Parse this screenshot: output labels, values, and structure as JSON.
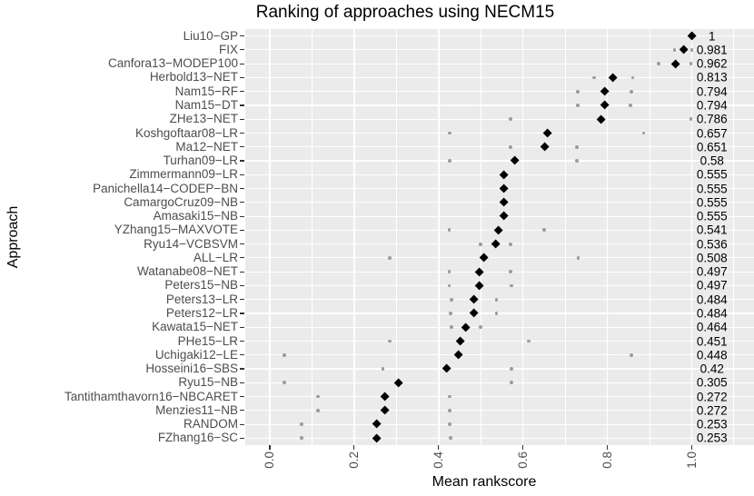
{
  "chart_data": {
    "type": "scatter",
    "title": "Ranking of approaches using NECM15",
    "xlabel": "Mean rankscore",
    "ylabel": "Approach",
    "legend": false,
    "grid": true,
    "panel_background": "#EBEBEB",
    "gridline_color": "#ffffff",
    "mean_marker_color": "#000000",
    "secondary_marker_color": "#9B9B9B",
    "axis_text_color": "#4D4D4D",
    "xlim": [
      -0.058,
      1.147
    ],
    "x_major_ticks": [
      0.0,
      0.2,
      0.4,
      0.6,
      0.8,
      1.0
    ],
    "x_tick_labels": [
      "0.0",
      "0.2",
      "0.4",
      "0.6",
      "0.8",
      "1.0"
    ],
    "x_minor_gridlines": [
      0.1,
      0.3,
      0.5,
      0.7,
      0.9,
      1.1
    ],
    "value_label_x": 1.048,
    "series": [
      {
        "name": "mean rankscore",
        "marker": "diamond",
        "color": "#000000"
      },
      {
        "name": "secondary rankscores",
        "marker": "circle",
        "color": "#9B9B9B"
      }
    ],
    "rows": [
      {
        "approach": "Liu10−GP",
        "mean": 1.0,
        "mean_label": "1",
        "gray_points": []
      },
      {
        "approach": "FIX",
        "mean": 0.981,
        "mean_label": "0.981",
        "gray_points": [
          0.959,
          1.0
        ]
      },
      {
        "approach": "Canfora13−MODEP100",
        "mean": 0.962,
        "mean_label": "0.962",
        "gray_points": [
          0.921,
          0.998
        ]
      },
      {
        "approach": "Herbold13−NET",
        "mean": 0.813,
        "mean_label": "0.813",
        "gray_points": [
          0.769,
          0.86
        ]
      },
      {
        "approach": "Nam15−RF",
        "mean": 0.794,
        "mean_label": "0.794",
        "gray_points": [
          0.73,
          0.856
        ]
      },
      {
        "approach": "Nam15−DT",
        "mean": 0.794,
        "mean_label": "0.794",
        "gray_points": [
          0.73,
          0.855
        ]
      },
      {
        "approach": "ZHe13−NET",
        "mean": 0.786,
        "mean_label": "0.786",
        "gray_points": [
          0.57,
          0.998
        ]
      },
      {
        "approach": "Koshgoftaar08−LR",
        "mean": 0.657,
        "mean_label": "0.657",
        "gray_points": [
          0.426,
          0.886
        ]
      },
      {
        "approach": "Ma12−NET",
        "mean": 0.651,
        "mean_label": "0.651",
        "gray_points": [
          0.57,
          0.728
        ]
      },
      {
        "approach": "Turhan09−LR",
        "mean": 0.58,
        "mean_label": "0.58",
        "gray_points": [
          0.426,
          0.728
        ]
      },
      {
        "approach": "Zimmermann09−LR",
        "mean": 0.555,
        "mean_label": "0.555",
        "gray_points": []
      },
      {
        "approach": "Panichella14−CODEP−BN",
        "mean": 0.555,
        "mean_label": "0.555",
        "gray_points": []
      },
      {
        "approach": "CamargoCruz09−NB",
        "mean": 0.555,
        "mean_label": "0.555",
        "gray_points": []
      },
      {
        "approach": "Amasaki15−NB",
        "mean": 0.555,
        "mean_label": "0.555",
        "gray_points": []
      },
      {
        "approach": "YZhang15−MAXVOTE",
        "mean": 0.541,
        "mean_label": "0.541",
        "gray_points": [
          0.425,
          0.651
        ]
      },
      {
        "approach": "Ryu14−VCBSVM",
        "mean": 0.536,
        "mean_label": "0.536",
        "gray_points": [
          0.5,
          0.571
        ]
      },
      {
        "approach": "ALL−LR",
        "mean": 0.508,
        "mean_label": "0.508",
        "gray_points": [
          0.284,
          0.731
        ]
      },
      {
        "approach": "Watanabe08−NET",
        "mean": 0.497,
        "mean_label": "0.497",
        "gray_points": [
          0.425,
          0.571
        ]
      },
      {
        "approach": "Peters15−NB",
        "mean": 0.497,
        "mean_label": "0.497",
        "gray_points": [
          0.425,
          0.573
        ]
      },
      {
        "approach": "Peters13−LR",
        "mean": 0.484,
        "mean_label": "0.484",
        "gray_points": [
          0.43,
          0.537
        ]
      },
      {
        "approach": "Peters12−LR",
        "mean": 0.484,
        "mean_label": "0.484",
        "gray_points": [
          0.428,
          0.537
        ]
      },
      {
        "approach": "Kawata15−NET",
        "mean": 0.464,
        "mean_label": "0.464",
        "gray_points": [
          0.43,
          0.5
        ]
      },
      {
        "approach": "PHe15−LR",
        "mean": 0.451,
        "mean_label": "0.451",
        "gray_points": [
          0.284,
          0.614
        ]
      },
      {
        "approach": "Uchigaki12−LE",
        "mean": 0.448,
        "mean_label": "0.448",
        "gray_points": [
          0.035,
          0.857
        ]
      },
      {
        "approach": "Hosseini16−SBS",
        "mean": 0.42,
        "mean_label": "0.42",
        "gray_points": [
          0.268,
          0.572
        ]
      },
      {
        "approach": "Ryu15−NB",
        "mean": 0.305,
        "mean_label": "0.305",
        "gray_points": [
          0.035,
          0.572
        ]
      },
      {
        "approach": "Tantithamthavorn16−NBCARET",
        "mean": 0.272,
        "mean_label": "0.272",
        "gray_points": [
          0.114,
          0.426
        ]
      },
      {
        "approach": "Menzies11−NB",
        "mean": 0.272,
        "mean_label": "0.272",
        "gray_points": [
          0.114,
          0.426
        ]
      },
      {
        "approach": "RANDOM",
        "mean": 0.253,
        "mean_label": "0.253",
        "gray_points": [
          0.076,
          0.426
        ]
      },
      {
        "approach": "FZhang16−SC",
        "mean": 0.253,
        "mean_label": "0.253",
        "gray_points": [
          0.076,
          0.428
        ]
      }
    ]
  }
}
